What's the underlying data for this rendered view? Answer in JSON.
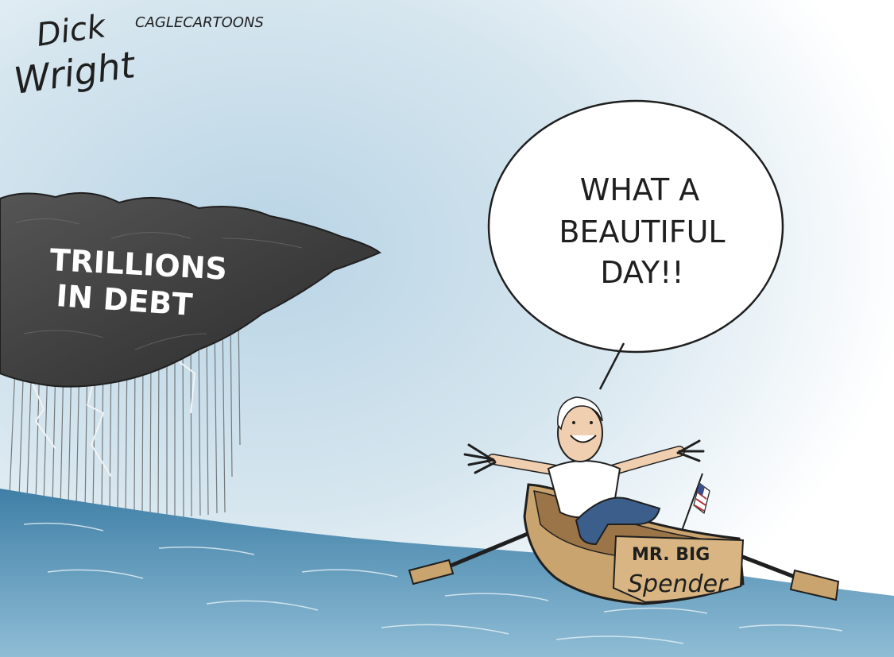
{
  "signature": {
    "name_line1": "Dick",
    "name_line2": "Wright",
    "syndicate": "CAGLECARTOONS"
  },
  "storm_cloud": {
    "label_line1": "TRILLIONS",
    "label_line2": "IN DEBT"
  },
  "speech_bubble": {
    "line1": "WHAT A",
    "line2": "BEAUTIFUL",
    "line3": "DAY!!"
  },
  "boat": {
    "label_line1": "MR. BIG",
    "label_line2": "Spender"
  },
  "colors": {
    "sky": "#c9dde9",
    "cloud": "#3f3f3f",
    "water": "#5e97b8",
    "boat": "#caa46f",
    "ink": "#1f1f1f"
  }
}
